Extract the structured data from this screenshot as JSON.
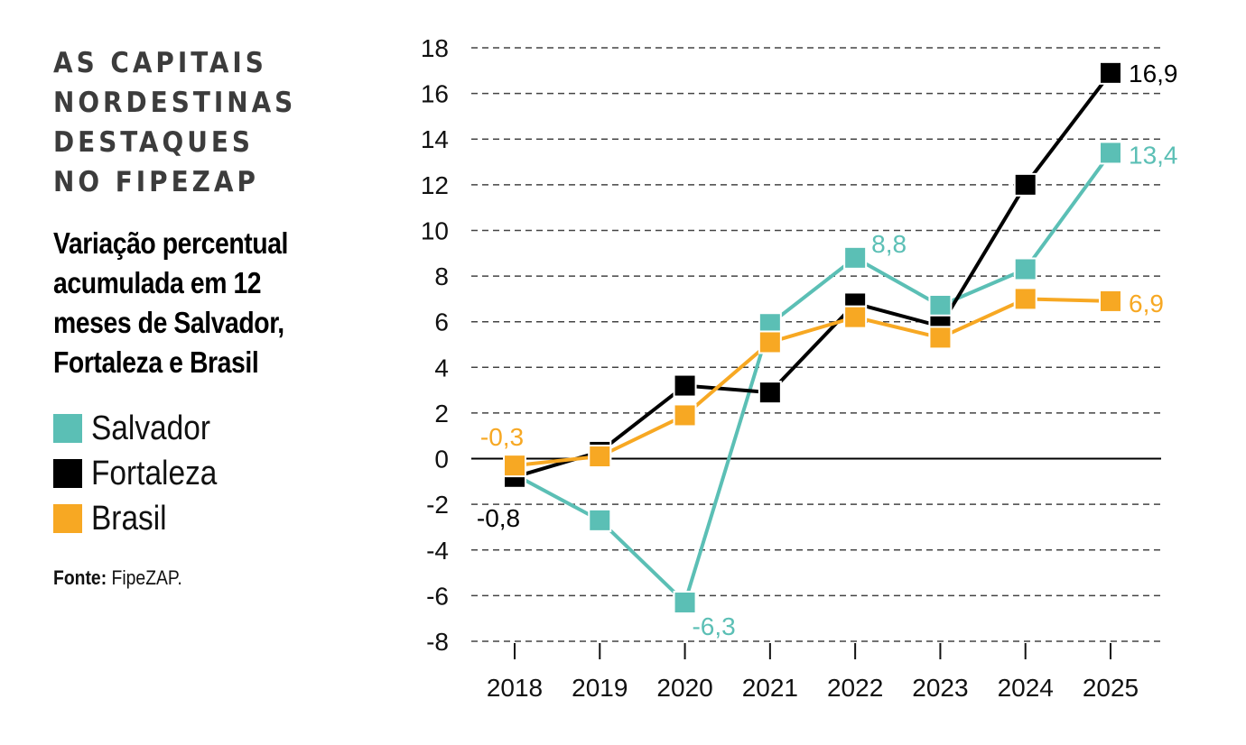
{
  "header": {
    "kicker_lines": [
      "AS CAPITAIS",
      "NORDESTINAS",
      "DESTAQUES",
      "NO FIPEZAP"
    ],
    "subtitle_lines": [
      "Variação percentual",
      "acumulada em 12",
      "meses de Salvador,",
      "Fortaleza e Brasil"
    ]
  },
  "legend": [
    {
      "name": "Salvador",
      "color": "#5bbfb5"
    },
    {
      "name": "Fortaleza",
      "color": "#000000"
    },
    {
      "name": "Brasil",
      "color": "#f7a823"
    }
  ],
  "source": {
    "label": "Fonte:",
    "value": "FipeZAP."
  },
  "chart_data": {
    "type": "line",
    "title": "Variação percentual acumulada em 12 meses de Salvador, Fortaleza e Brasil",
    "xlabel": "",
    "ylabel": "",
    "x": [
      "2018",
      "2019",
      "2020",
      "2021",
      "2022",
      "2023",
      "2024",
      "2025"
    ],
    "ylim": [
      -8,
      18
    ],
    "yticks": [
      18,
      16,
      14,
      12,
      10,
      8,
      6,
      4,
      2,
      0,
      -2,
      -4,
      -6,
      -8
    ],
    "grid": true,
    "legend_position": "left",
    "series": [
      {
        "name": "Salvador",
        "color": "#5bbfb5",
        "values": [
          -0.7,
          -2.7,
          -6.3,
          5.9,
          8.8,
          6.7,
          8.3,
          13.4
        ]
      },
      {
        "name": "Fortaleza",
        "color": "#000000",
        "values": [
          -0.8,
          0.3,
          3.2,
          2.9,
          6.8,
          5.8,
          12.0,
          16.9
        ]
      },
      {
        "name": "Brasil",
        "color": "#f7a823",
        "values": [
          -0.3,
          0.1,
          1.9,
          5.1,
          6.2,
          5.3,
          7.0,
          6.9
        ]
      }
    ],
    "annotations": [
      {
        "series": "Brasil",
        "x": "2018",
        "text": "-0,3",
        "color": "#f7a823"
      },
      {
        "series": "Fortaleza",
        "x": "2018",
        "text": "-0,8",
        "color": "#000000"
      },
      {
        "series": "Salvador",
        "x": "2020",
        "text": "-6,3",
        "color": "#5bbfb5"
      },
      {
        "series": "Salvador",
        "x": "2022",
        "text": "8,8",
        "color": "#5bbfb5"
      },
      {
        "series": "Fortaleza",
        "x": "2025",
        "text": "16,9",
        "color": "#000000"
      },
      {
        "series": "Salvador",
        "x": "2025",
        "text": "13,4",
        "color": "#5bbfb5"
      },
      {
        "series": "Brasil",
        "x": "2025",
        "text": "6,9",
        "color": "#f7a823"
      }
    ]
  }
}
